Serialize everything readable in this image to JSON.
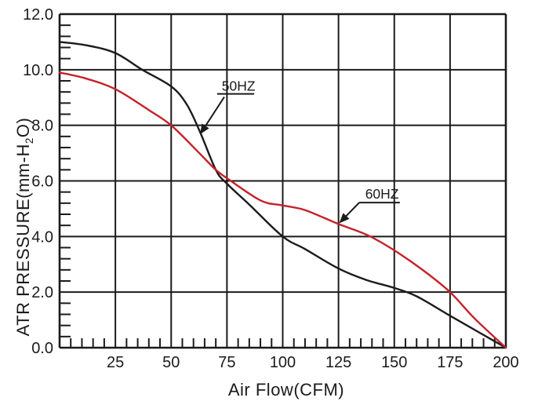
{
  "chart_data": {
    "type": "line",
    "title": "",
    "xlabel": "Air Flow(CFM)",
    "ylabel": "ATR PRESSURE(mm-H2O)",
    "ylabel_parts": {
      "pre": "ATR PRESSURE(mm-H",
      "sub": "2",
      "post": "O)"
    },
    "xlim": [
      0,
      200
    ],
    "ylim": [
      0,
      12
    ],
    "grid": true,
    "x_major_step": 25,
    "x_minor_step": 5,
    "y_major_step": 2,
    "y_minor_step": 0.4,
    "x_ticks": [
      {
        "value": 25,
        "label": "25"
      },
      {
        "value": 50,
        "label": "50"
      },
      {
        "value": 75,
        "label": "75"
      },
      {
        "value": 100,
        "label": "100"
      },
      {
        "value": 125,
        "label": "125"
      },
      {
        "value": 150,
        "label": "150"
      },
      {
        "value": 175,
        "label": "175"
      },
      {
        "value": 200,
        "label": "200"
      }
    ],
    "y_ticks": [
      {
        "value": 0,
        "label": "0.0"
      },
      {
        "value": 2,
        "label": "2.0"
      },
      {
        "value": 4,
        "label": "4.0"
      },
      {
        "value": 6,
        "label": "6.0"
      },
      {
        "value": 8,
        "label": "8.0"
      },
      {
        "value": 10,
        "label": "10.0"
      },
      {
        "value": 12,
        "label": "12.0"
      }
    ],
    "colors": {
      "axis": "#1b1b1b",
      "text": "#1b1b1b",
      "series_50hz": "#1b1b1b",
      "series_60hz": "#c4222a"
    },
    "series": [
      {
        "name": "50HZ",
        "color": "#1b1b1b",
        "points": [
          [
            0,
            11.0
          ],
          [
            12,
            10.88
          ],
          [
            25,
            10.6
          ],
          [
            37,
            10.0
          ],
          [
            50,
            9.4
          ],
          [
            57,
            8.75
          ],
          [
            63,
            7.75
          ],
          [
            70,
            6.4
          ],
          [
            75,
            5.9
          ],
          [
            85,
            5.15
          ],
          [
            100,
            4.0
          ],
          [
            110,
            3.55
          ],
          [
            125,
            2.85
          ],
          [
            137,
            2.45
          ],
          [
            150,
            2.15
          ],
          [
            160,
            1.85
          ],
          [
            175,
            1.15
          ],
          [
            188,
            0.55
          ],
          [
            200,
            0.0
          ]
        ]
      },
      {
        "name": "60HZ",
        "color": "#c4222a",
        "points": [
          [
            0,
            9.9
          ],
          [
            12,
            9.68
          ],
          [
            25,
            9.3
          ],
          [
            40,
            8.55
          ],
          [
            50,
            8.0
          ],
          [
            62,
            7.05
          ],
          [
            70,
            6.4
          ],
          [
            75,
            6.1
          ],
          [
            90,
            5.3
          ],
          [
            100,
            5.12
          ],
          [
            110,
            4.95
          ],
          [
            125,
            4.45
          ],
          [
            138,
            4.05
          ],
          [
            150,
            3.5
          ],
          [
            163,
            2.78
          ],
          [
            175,
            2.0
          ],
          [
            186,
            1.05
          ],
          [
            200,
            0.0
          ]
        ]
      }
    ],
    "annotations": [
      {
        "text": "50HZ",
        "text_pos": [
          80.2,
          9.42
        ],
        "underline": [
          [
            70.6,
            9.13
          ],
          [
            87.2,
            9.13
          ]
        ],
        "arrow_from": [
          73.8,
          9.02
        ],
        "arrow_to": [
          63.3,
          7.72
        ]
      },
      {
        "text": "60HZ",
        "text_pos": [
          144.5,
          5.53
        ],
        "underline": [
          [
            134.3,
            5.22
          ],
          [
            152.5,
            5.22
          ]
        ],
        "arrow_from": [
          134.3,
          5.22
        ],
        "arrow_to": [
          125.8,
          4.52
        ]
      }
    ]
  }
}
